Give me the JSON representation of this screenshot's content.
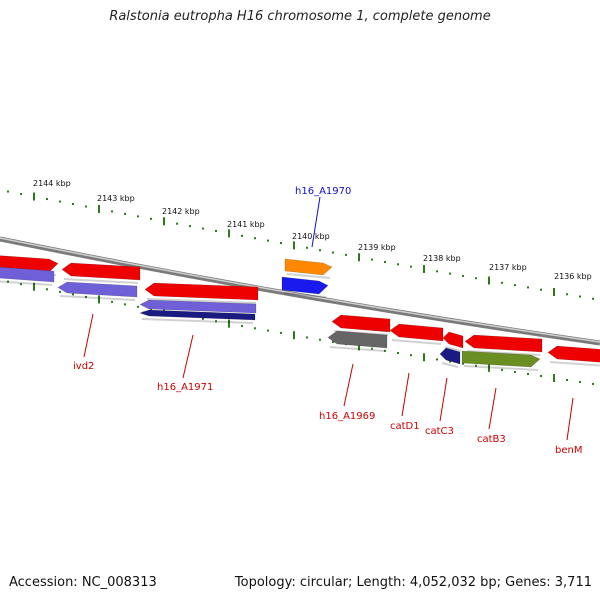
{
  "header": {
    "title": "Ralstonia eutropha H16 chromosome 1, complete genome"
  },
  "footer": {
    "accession": "Accession: NC_008313",
    "summary": "Topology: circular; Length: 4,052,032 bp; Genes: 3,711"
  },
  "scale": {
    "ticks": [
      "2144 kbp",
      "2143 kbp",
      "2142 kbp",
      "2141 kbp",
      "2140 kbp",
      "2139 kbp",
      "2138 kbp",
      "2137 kbp",
      "2136 kbp"
    ]
  },
  "genes": [
    {
      "label": "h16_A1970",
      "color": "#1010cc"
    },
    {
      "label": "ivd2",
      "color": "#cc0000"
    },
    {
      "label": "h16_A1971",
      "color": "#cc0000"
    },
    {
      "label": "h16_A1969",
      "color": "#cc0000"
    },
    {
      "label": "catD1",
      "color": "#cc0000"
    },
    {
      "label": "catC3",
      "color": "#cc0000"
    },
    {
      "label": "catB3",
      "color": "#cc0000"
    },
    {
      "label": "benM",
      "color": "#cc0000"
    }
  ],
  "colors": {
    "backbone": "#8a8a8a",
    "tick": "#2a7a1a",
    "gene_red": "#ee0000",
    "gene_purple": "#7060d8",
    "gene_navy": "#1a1a80",
    "gene_gray": "#666666",
    "gene_orange": "#ff8800",
    "gene_blue": "#1a1aee",
    "gene_olive": "#6b8e23"
  }
}
